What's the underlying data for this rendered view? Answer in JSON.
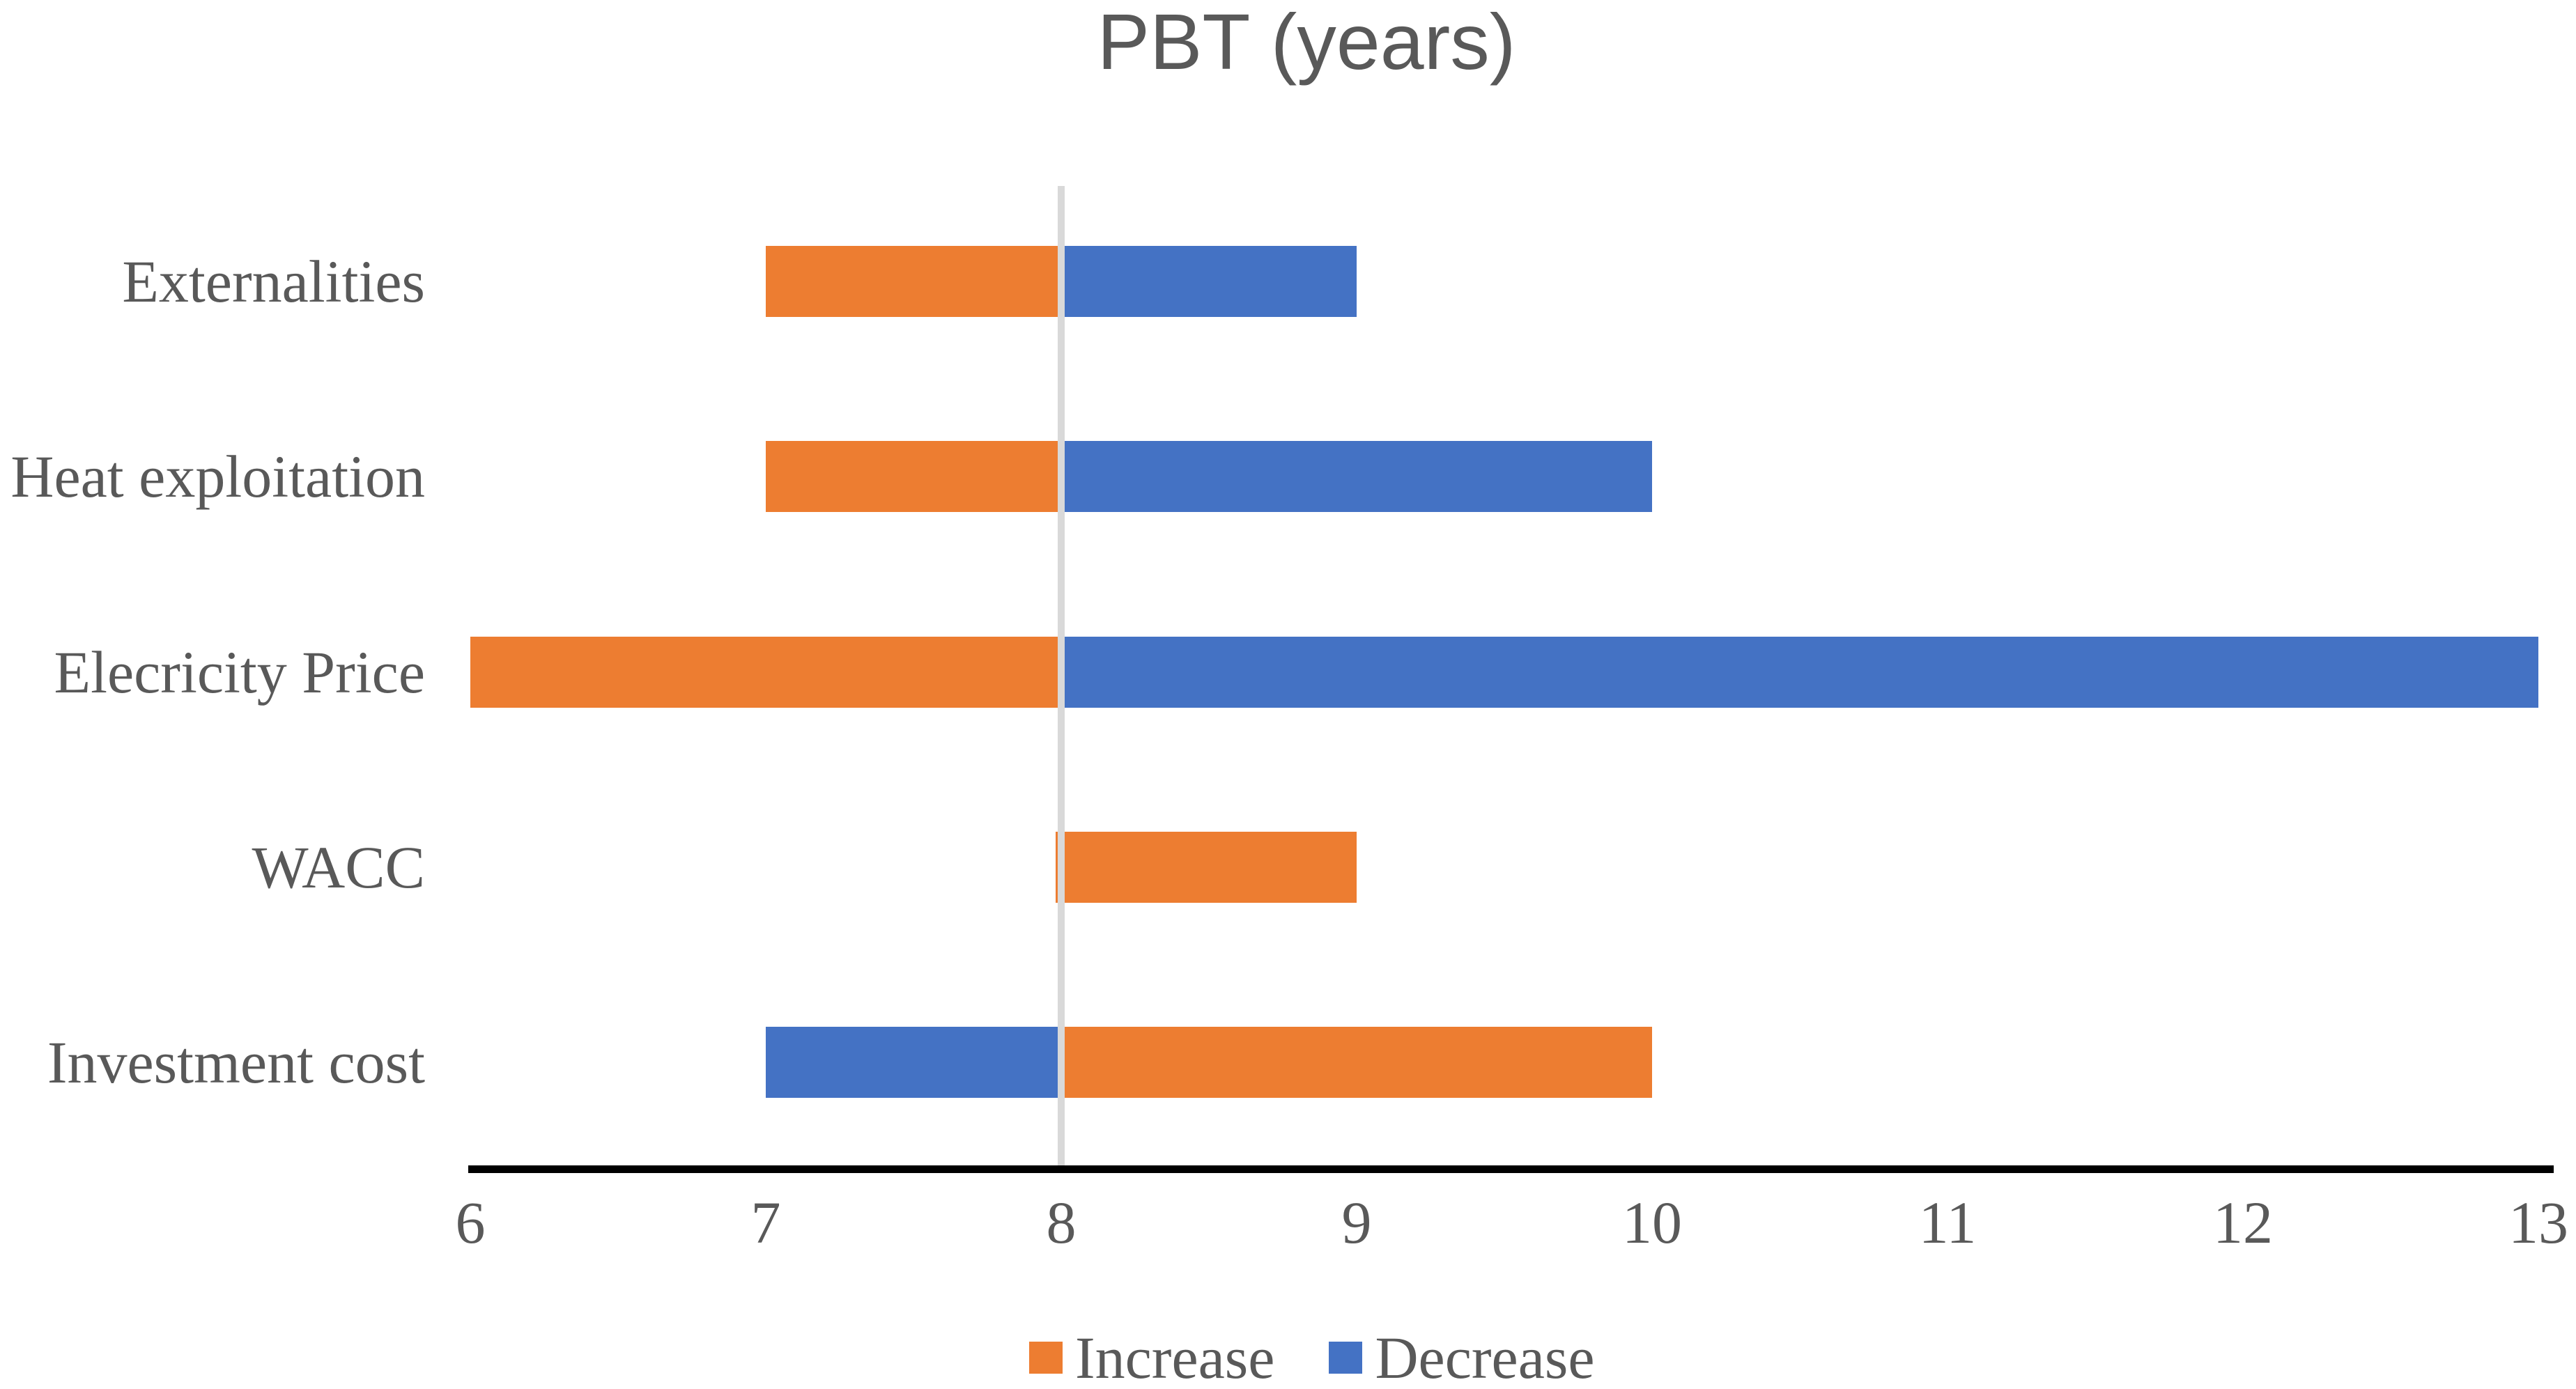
{
  "title": "PBT (years)",
  "colors": {
    "increase": "#ED7D31",
    "decrease": "#4472C4",
    "reference_line": "#D9D9D9",
    "axis_line": "#000000",
    "text": "#595959",
    "background": "#FFFFFF"
  },
  "legend": [
    {
      "label": "Increase",
      "color": "#ED7D31"
    },
    {
      "label": "Decrease",
      "color": "#4472C4"
    }
  ],
  "chart_data": {
    "type": "bar",
    "orientation": "horizontal",
    "title": "PBT (years)",
    "xlabel": "",
    "ylabel": "",
    "xlim": [
      6,
      13
    ],
    "x_ticks": [
      6,
      7,
      8,
      9,
      10,
      11,
      12,
      13
    ],
    "base_value": 8,
    "reference_line": {
      "value": 8,
      "color": "#D9D9D9"
    },
    "grid": false,
    "legend_position": "bottom",
    "categories": [
      "Externalities",
      "Heat exploitation",
      "Elecricity Price",
      "WACC",
      "Investment cost"
    ],
    "series": [
      {
        "name": "Increase",
        "color": "#ED7D31",
        "ranges": [
          [
            7,
            8
          ],
          [
            7,
            8
          ],
          [
            6,
            8
          ],
          [
            7.98,
            9
          ],
          [
            8,
            10
          ]
        ]
      },
      {
        "name": "Decrease",
        "color": "#4472C4",
        "ranges": [
          [
            8,
            9
          ],
          [
            8,
            10
          ],
          [
            8,
            13
          ],
          null,
          [
            7,
            8
          ]
        ]
      }
    ]
  }
}
